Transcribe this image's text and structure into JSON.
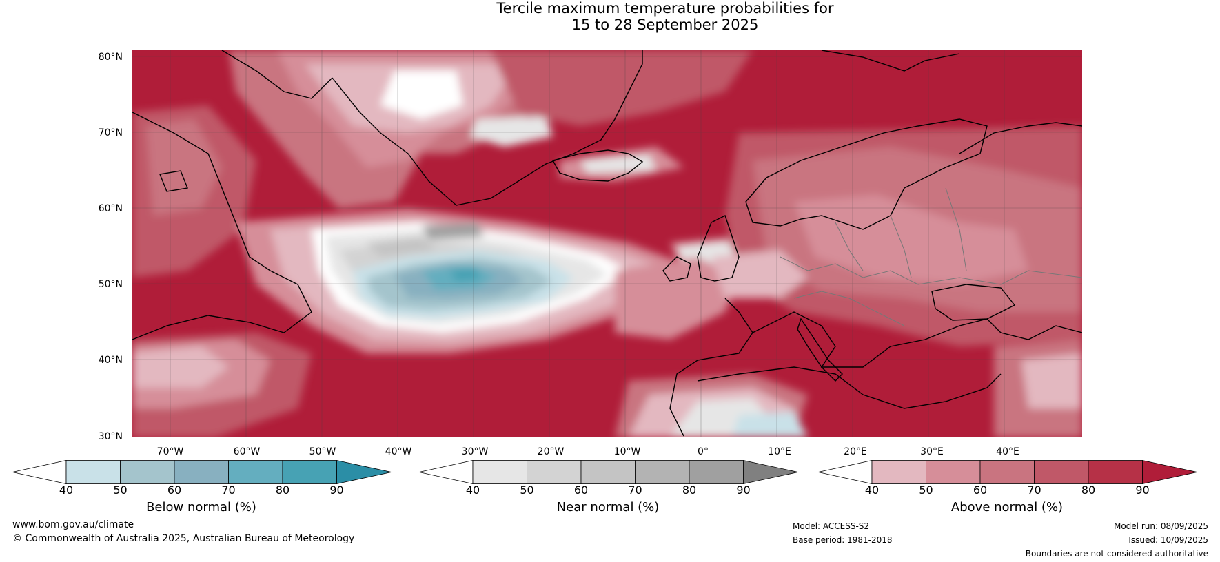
{
  "title": {
    "line1": "Tercile maximum temperature probabilities for",
    "line2": "15 to 28 September 2025"
  },
  "axes": {
    "lat_labels": [
      "80°N",
      "70°N",
      "60°N",
      "50°N",
      "40°N",
      "30°N"
    ],
    "lon_labels": [
      "70°W",
      "60°W",
      "50°W",
      "40°W",
      "30°W",
      "20°W",
      "10°W",
      "0°",
      "10°E",
      "20°E",
      "30°E",
      "40°E"
    ]
  },
  "colorbars": [
    {
      "label": "Below normal (%)",
      "ticks": [
        "40",
        "50",
        "60",
        "70",
        "80",
        "90"
      ],
      "colors": [
        "#ffffff",
        "#c9e1e8",
        "#a4c4cc",
        "#88b0c0",
        "#64aebf",
        "#47a2b4",
        "#2b8ea6"
      ]
    },
    {
      "label": "Near normal (%)",
      "ticks": [
        "40",
        "50",
        "60",
        "70",
        "80",
        "90"
      ],
      "colors": [
        "#ffffff",
        "#e6e6e6",
        "#d3d3d3",
        "#c4c4c4",
        "#b3b3b3",
        "#a0a0a0",
        "#808080"
      ]
    },
    {
      "label": "Above normal (%)",
      "ticks": [
        "40",
        "50",
        "60",
        "70",
        "80",
        "90"
      ],
      "colors": [
        "#ffffff",
        "#e3b8c0",
        "#d68e99",
        "#c97480",
        "#c05868",
        "#b63147",
        "#b01d39"
      ]
    }
  ],
  "footer": {
    "website": "www.bom.gov.au/climate",
    "copyright": "© Commonwealth of Australia 2025, Australian Bureau of Meteorology",
    "model": "Model: ACCESS-S2",
    "base_period": "Base period: 1981-2018",
    "model_run": "Model run: 08/09/2025",
    "issued": "Issued: 10/09/2025",
    "disclaimer": "Boundaries are not considered authoritative"
  }
}
